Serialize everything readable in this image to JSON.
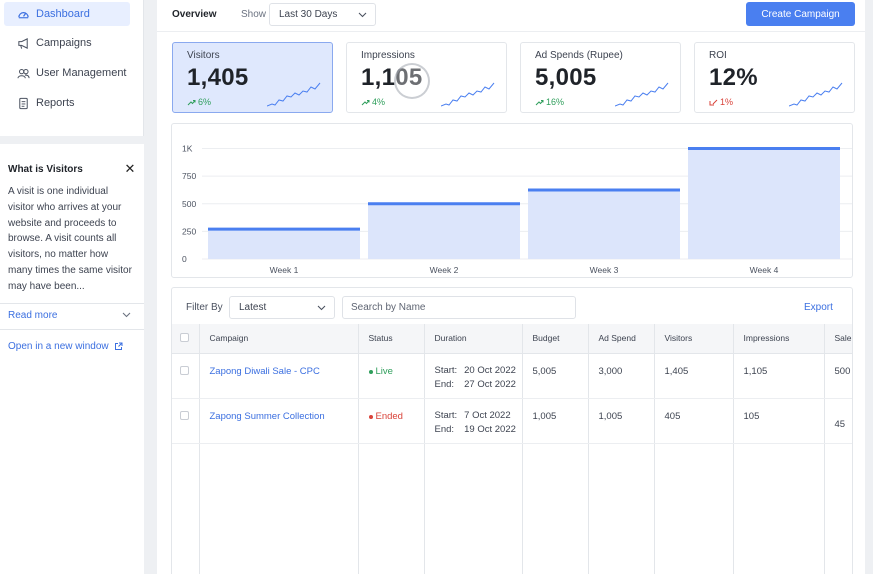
{
  "sidebar": {
    "items": [
      {
        "label": "Dashboard",
        "icon": "gauge-icon",
        "active": true
      },
      {
        "label": "Campaigns",
        "icon": "megaphone-icon",
        "active": false
      },
      {
        "label": "User Management",
        "icon": "users-icon",
        "active": false
      },
      {
        "label": "Reports",
        "icon": "report-icon",
        "active": false
      }
    ]
  },
  "help": {
    "title": "What is Visitors",
    "close_icon": "close-icon",
    "body": "A visit is one individual visitor who arrives at your website and proceeds to browse. A visit counts all visitors, no matter how many times the same visitor may have been...",
    "read_more": "Read more",
    "open_window": "Open in a new window"
  },
  "header": {
    "tab": "Overview",
    "show_label": "Show",
    "range_value": "Last 30 Days",
    "create_button": "Create Campaign"
  },
  "stats": [
    {
      "label": "Visitors",
      "value": "1,405",
      "change": "6%",
      "direction": "up",
      "selected": true
    },
    {
      "label": "Impressions",
      "value": "1,105",
      "change": "4%",
      "direction": "up",
      "selected": false
    },
    {
      "label": "Ad Spends (Rupee)",
      "value": "5,005",
      "change": "16%",
      "direction": "up",
      "selected": false
    },
    {
      "label": "ROI",
      "value": "12%",
      "change": "1%",
      "direction": "down",
      "selected": false
    }
  ],
  "chart_data": {
    "type": "bar",
    "title": "",
    "categories": [
      "Week 1",
      "Week 2",
      "Week 3",
      "Week 4"
    ],
    "values": [
      270,
      500,
      625,
      1000
    ],
    "yticks": [
      "0",
      "250",
      "500",
      "750",
      "1K"
    ],
    "ylim": [
      0,
      1050
    ],
    "xlabel": "",
    "ylabel": "",
    "grid": true,
    "bar_fill": "#dce5fb",
    "bar_top": "#4a7ff0"
  },
  "filters": {
    "filter_label": "Filter By",
    "sort_value": "Latest",
    "search_placeholder": "Search by Name",
    "export_label": "Export"
  },
  "table": {
    "columns": [
      "Campaign",
      "Status",
      "Duration",
      "Budget",
      "Ad Spend",
      "Visitors",
      "Impressions",
      "Sale"
    ],
    "rows": [
      {
        "campaign": "Zapong Diwali Sale - CPC",
        "status": "Live",
        "start": "20 Oct 2022",
        "end": "27 Oct 2022",
        "budget": "5,005",
        "ad_spend": "3,000",
        "visitors": "1,405",
        "impressions": "1,105",
        "sales": "500"
      },
      {
        "campaign": "Zapong Summer Collection",
        "status": "Ended",
        "start": "7 Oct 2022",
        "end": "19 Oct 2022",
        "budget": "1,005",
        "ad_spend": "1,005",
        "visitors": "405",
        "impressions": "105",
        "sales": "45"
      }
    ],
    "start_label": "Start:",
    "end_label": "End:"
  },
  "colors": {
    "accent": "#4a7ff0",
    "positive": "#2f9e5b",
    "negative": "#d9433a"
  }
}
